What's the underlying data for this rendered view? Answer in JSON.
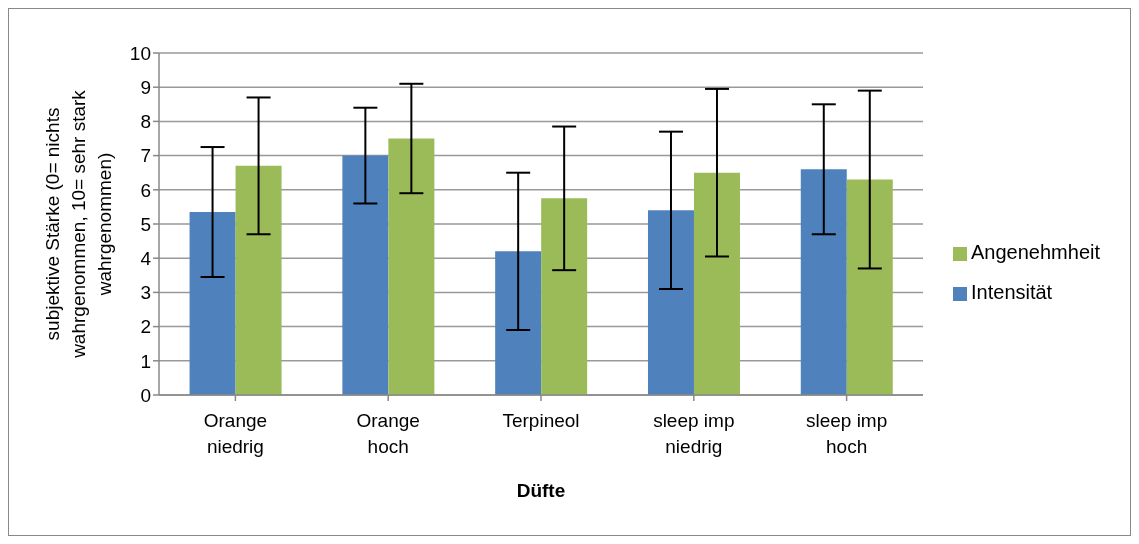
{
  "chart_data": {
    "type": "bar",
    "xlabel": "Düfte",
    "ylabel": "subjektive Stärke (0= nichts wahrgenommen, 10= sehr stark wahrgenommen)",
    "categories": [
      "Orange niedrig",
      "Orange hoch",
      "Terpineol",
      "sleep imp niedrig",
      "sleep imp hoch"
    ],
    "series": [
      {
        "name": "Intensität",
        "color": "#4f81bd",
        "values": [
          5.35,
          7.0,
          4.2,
          5.4,
          6.6
        ],
        "errors": [
          1.9,
          1.4,
          2.3,
          2.3,
          1.9
        ]
      },
      {
        "name": "Angenehmheit",
        "color": "#9bbb59",
        "values": [
          6.7,
          7.5,
          5.75,
          6.5,
          6.3
        ],
        "errors": [
          2.0,
          1.6,
          2.1,
          2.45,
          2.6
        ]
      }
    ],
    "ylim": [
      0,
      10
    ],
    "yticks": [
      0,
      1,
      2,
      3,
      4,
      5,
      6,
      7,
      8,
      9,
      10
    ],
    "grid": "y",
    "legend": "right"
  }
}
